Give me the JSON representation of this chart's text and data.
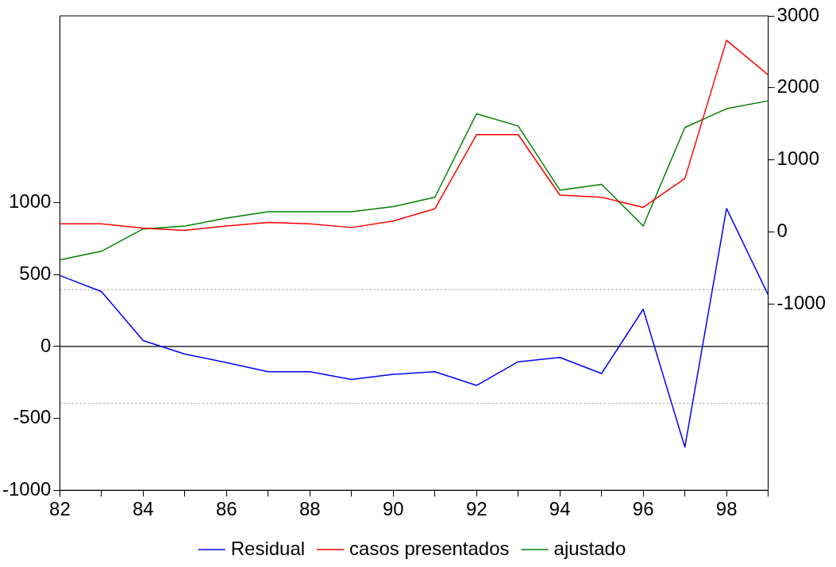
{
  "chart_data": {
    "type": "line",
    "x": [
      82,
      83,
      84,
      85,
      86,
      87,
      88,
      89,
      90,
      91,
      92,
      93,
      94,
      95,
      96,
      97,
      98,
      99
    ],
    "series": [
      {
        "name": "Residual",
        "color": "#0000ff",
        "values": [
          494,
          382,
          41,
          -53,
          -112,
          -176,
          -176,
          -229,
          -194,
          -176,
          -271,
          -106,
          -76,
          -188,
          259,
          -700,
          960,
          359
        ]
      },
      {
        "name": "casos presentados",
        "color": "#ff0000",
        "axis": "y2",
        "values": [
          110,
          110,
          50,
          20,
          80,
          130,
          110,
          60,
          150,
          320,
          1350,
          1350,
          510,
          480,
          340,
          740,
          2660,
          2180
        ]
      },
      {
        "name": "ajustado",
        "color": "#008000",
        "axis": "y2",
        "values": [
          -390,
          -270,
          40,
          80,
          190,
          280,
          280,
          280,
          350,
          480,
          1640,
          1470,
          580,
          660,
          80,
          1450,
          1710,
          1820
        ]
      }
    ],
    "xlim": [
      82,
      99
    ],
    "xticks": [
      82,
      {
        "value": 83,
        "label": null
      },
      84,
      {
        "value": 85,
        "label": null
      },
      86,
      {
        "value": 87,
        "label": null
      },
      88,
      {
        "value": 89,
        "label": null
      },
      90,
      {
        "value": 91,
        "label": null
      },
      92,
      {
        "value": 93,
        "label": null
      },
      94,
      {
        "value": 95,
        "label": null
      },
      96,
      {
        "value": 97,
        "label": null
      },
      98,
      {
        "value": 99,
        "label": null
      }
    ],
    "ylim": [
      -1000,
      2300
    ],
    "yticks": [
      -1000,
      -500,
      0,
      500,
      1000
    ],
    "y2lim": [
      -3590,
      3000
    ],
    "y2ticks": [
      -1000,
      0,
      1000,
      2000,
      3000
    ],
    "ref_lines": [
      {
        "axis": "y",
        "value": 0,
        "color": "#000000",
        "line_style": "solid"
      },
      {
        "axis": "y",
        "value": 395,
        "color": "#a0a0a0",
        "line_style": "dotted"
      },
      {
        "axis": "y",
        "value": -395,
        "color": "#a0a0a0",
        "line_style": "dotted"
      }
    ],
    "grid": false,
    "legend": "bottom",
    "marker": "none",
    "line_style": "solid"
  }
}
